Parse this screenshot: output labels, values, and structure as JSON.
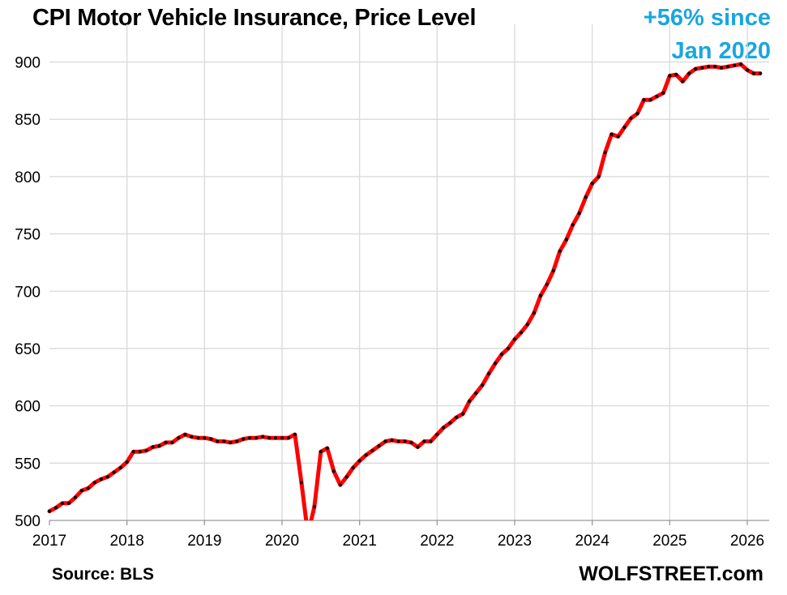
{
  "chart_data": {
    "type": "line",
    "title": "CPI Motor Vehicle Insurance, Price Level",
    "annotation": [
      "+56% since",
      "Jan 2020"
    ],
    "source": "Source: BLS",
    "credit": "WOLFSTREET.com",
    "xlabel": "",
    "ylabel": "",
    "xlim": [
      2017,
      2026.25
    ],
    "ylim": [
      500,
      910
    ],
    "yticks": [
      500,
      550,
      600,
      650,
      700,
      750,
      800,
      850,
      900
    ],
    "xticks": [
      "2017",
      "2018",
      "2019",
      "2020",
      "2021",
      "2022",
      "2023",
      "2024",
      "2025",
      "2026"
    ],
    "grid": true,
    "colors": {
      "line": "#ff0000",
      "marker": "#000000",
      "grid": "#d9d9d9",
      "annotation": "#1aa6df"
    },
    "series": [
      {
        "x": [
          "2017-01",
          "2017-02",
          "2017-03",
          "2017-04",
          "2017-05",
          "2017-06",
          "2017-07",
          "2017-08",
          "2017-09",
          "2017-10",
          "2017-11",
          "2017-12",
          "2018-01",
          "2018-02",
          "2018-03",
          "2018-04",
          "2018-05",
          "2018-06",
          "2018-07",
          "2018-08",
          "2018-09",
          "2018-10",
          "2018-11",
          "2018-12",
          "2019-01",
          "2019-02",
          "2019-03",
          "2019-04",
          "2019-05",
          "2019-06",
          "2019-07",
          "2019-08",
          "2019-09",
          "2019-10",
          "2019-11",
          "2019-12",
          "2020-01",
          "2020-02",
          "2020-03",
          "2020-04",
          "2020-05",
          "2020-06",
          "2020-07",
          "2020-08",
          "2020-09",
          "2020-10",
          "2020-11",
          "2020-12",
          "2021-01",
          "2021-02",
          "2021-03",
          "2021-04",
          "2021-05",
          "2021-06",
          "2021-07",
          "2021-08",
          "2021-09",
          "2021-10",
          "2021-11",
          "2021-12",
          "2022-01",
          "2022-02",
          "2022-03",
          "2022-04",
          "2022-05",
          "2022-06",
          "2022-07",
          "2022-08",
          "2022-09",
          "2022-10",
          "2022-11",
          "2022-12",
          "2023-01",
          "2023-02",
          "2023-03",
          "2023-04",
          "2023-05",
          "2023-06",
          "2023-07",
          "2023-08",
          "2023-09",
          "2023-10",
          "2023-11",
          "2023-12",
          "2024-01",
          "2024-02",
          "2024-03",
          "2024-04",
          "2024-05",
          "2024-06",
          "2024-07",
          "2024-08",
          "2024-09",
          "2024-10",
          "2024-11",
          "2024-12",
          "2025-01",
          "2025-02",
          "2025-03",
          "2025-04",
          "2025-05",
          "2025-06",
          "2025-07",
          "2025-08",
          "2025-09",
          "2025-10",
          "2025-11",
          "2025-12",
          "2026-01",
          "2026-02",
          "2026-03"
        ],
        "values": [
          508,
          511,
          515,
          515,
          520,
          526,
          528,
          533,
          536,
          538,
          542,
          546,
          551,
          560,
          560,
          561,
          564,
          565,
          568,
          568,
          572,
          575,
          573,
          572,
          572,
          571,
          569,
          569,
          568,
          569,
          571,
          572,
          572,
          573,
          572,
          572,
          572,
          572,
          575,
          533,
          488,
          512,
          560,
          563,
          543,
          531,
          538,
          546,
          552,
          557,
          561,
          565,
          569,
          570,
          569,
          569,
          568,
          564,
          569,
          569,
          575,
          581,
          585,
          590,
          593,
          604,
          611,
          618,
          628,
          637,
          645,
          650,
          658,
          664,
          671,
          681,
          696,
          706,
          718,
          735,
          745,
          758,
          768,
          782,
          794,
          800,
          821,
          837,
          835,
          843,
          851,
          855,
          867,
          867,
          870,
          873,
          888,
          889,
          883,
          890,
          894,
          895,
          896,
          896,
          895,
          896,
          897,
          898,
          893,
          890,
          890
        ]
      }
    ]
  }
}
